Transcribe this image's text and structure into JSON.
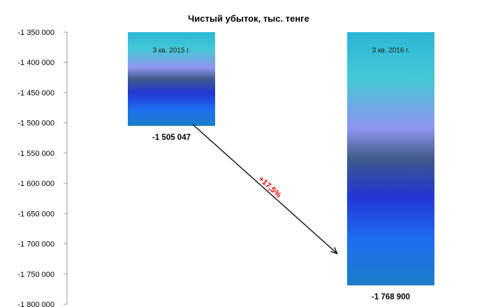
{
  "chart_data": {
    "type": "bar",
    "title": "Чистый убыток, тыс. тенге",
    "categories": [
      "3 кв. 2015 г.",
      "3 кв. 2016 г."
    ],
    "values": [
      -1505047,
      -1768900
    ],
    "value_labels": [
      "-1 505 047",
      "-1 768 900"
    ],
    "ylim": [
      -1800000,
      -1350000
    ],
    "yticks": [
      -1350000,
      -1400000,
      -1450000,
      -1500000,
      -1550000,
      -1600000,
      -1650000,
      -1700000,
      -1750000,
      -1800000
    ],
    "ytick_labels": [
      "-1 350 000",
      "-1 400 000",
      "-1 450 000",
      "-1 500 000",
      "-1 550 000",
      "-1 600 000",
      "-1 650 000",
      "-1 700 000",
      "-1 750 000",
      "-1 800 000"
    ],
    "annotation": {
      "text": "+17,5%",
      "color": "#ff0000"
    },
    "grid": false,
    "legend": "none"
  }
}
